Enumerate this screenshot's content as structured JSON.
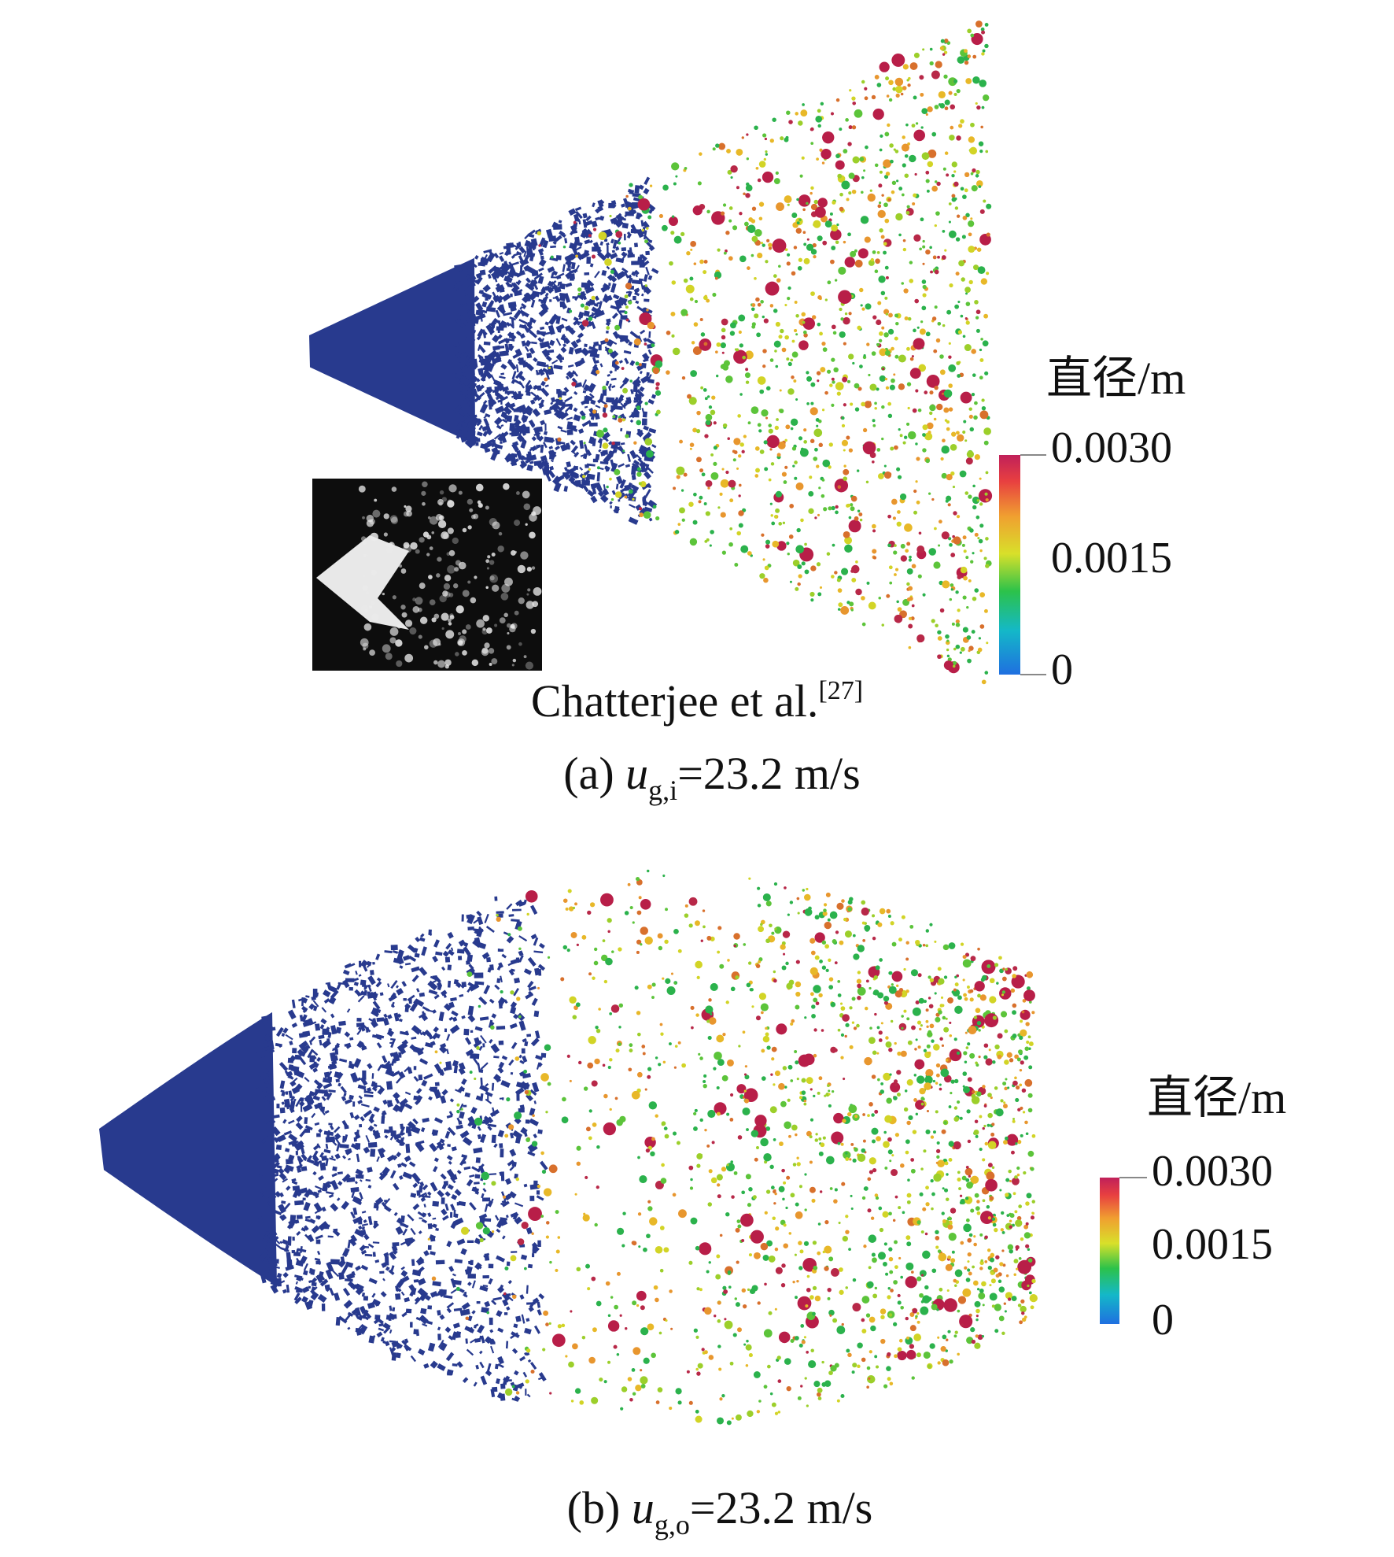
{
  "panels": [
    {
      "colorbar": {
        "title": "直径/m",
        "ticks": [
          "0.0030",
          "0.0015",
          "0"
        ]
      },
      "inset_caption": {
        "text": "Chatterjee et al.",
        "ref": "[27]"
      },
      "caption": {
        "label": "(a) ",
        "variable": "u",
        "subscript": "g,i",
        "rest": "=23.2 m/s"
      }
    },
    {
      "colorbar": {
        "title": "直径/m",
        "ticks": [
          "0.0030",
          "0.0015",
          "0"
        ]
      },
      "caption": {
        "label": "(b) ",
        "variable": "u",
        "subscript": "g,o",
        "rest": "=23.2 m/s"
      }
    }
  ]
}
